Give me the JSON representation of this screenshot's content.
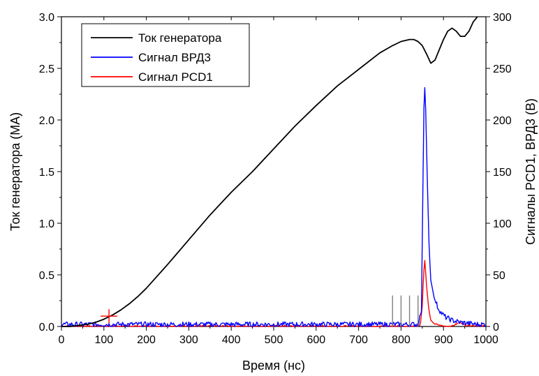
{
  "chart_data": {
    "type": "line",
    "xlabel": "Время (нс)",
    "ylabel_left": "Ток генератора (MA)",
    "ylabel_right": "Сигналы PCD1, ВРД3 (В)",
    "xlim": [
      0,
      1000
    ],
    "ylim_left": [
      0,
      3.0
    ],
    "ylim_right": [
      0,
      300
    ],
    "x_ticks": [
      "0",
      "100",
      "200",
      "300",
      "400",
      "500",
      "600",
      "700",
      "800",
      "900",
      "1000"
    ],
    "y_left_ticks": [
      "0.0",
      "0.5",
      "1.0",
      "1.5",
      "2.0",
      "2.5",
      "3.0"
    ],
    "y_right_ticks": [
      "0",
      "50",
      "100",
      "150",
      "200",
      "250",
      "300"
    ],
    "grid": false,
    "legend_position": "top-left",
    "series": [
      {
        "name": "Ток генератора",
        "axis": "left",
        "color": "#000000",
        "x": [
          0,
          20,
          40,
          60,
          80,
          100,
          120,
          140,
          160,
          180,
          200,
          250,
          300,
          350,
          400,
          450,
          500,
          550,
          600,
          650,
          700,
          750,
          780,
          800,
          820,
          830,
          840,
          850,
          860,
          870,
          880,
          890,
          900,
          910,
          920,
          930,
          940,
          950,
          960,
          970,
          980
        ],
        "y": [
          0,
          0.0,
          0.01,
          0.02,
          0.04,
          0.07,
          0.11,
          0.16,
          0.22,
          0.29,
          0.37,
          0.6,
          0.84,
          1.08,
          1.3,
          1.5,
          1.72,
          1.94,
          2.14,
          2.33,
          2.49,
          2.65,
          2.72,
          2.76,
          2.78,
          2.78,
          2.76,
          2.72,
          2.64,
          2.55,
          2.58,
          2.68,
          2.78,
          2.86,
          2.89,
          2.86,
          2.81,
          2.81,
          2.86,
          2.95,
          3.0
        ]
      },
      {
        "name": "Сигнал ВРД3",
        "axis": "right",
        "color": "#0000ff",
        "x": [
          0,
          100,
          200,
          300,
          400,
          500,
          600,
          700,
          800,
          840,
          848,
          852,
          855,
          858,
          862,
          866,
          870,
          878,
          886,
          895,
          905,
          920,
          940,
          960,
          980,
          1000
        ],
        "y": [
          1,
          1,
          1,
          1,
          1,
          1,
          1,
          1,
          1,
          1,
          15,
          150,
          242,
          210,
          140,
          80,
          45,
          28,
          18,
          12,
          8,
          5,
          3,
          2,
          1,
          1
        ]
      },
      {
        "name": "Сигнал PCD1",
        "axis": "right",
        "color": "#ff0000",
        "x": [
          0,
          200,
          400,
          600,
          800,
          845,
          850,
          853,
          856,
          860,
          865,
          870,
          880,
          900,
          920,
          930,
          940,
          950,
          1000
        ],
        "y": [
          0,
          0,
          0,
          0,
          0,
          0,
          20,
          50,
          64,
          40,
          18,
          6,
          2,
          0,
          0,
          2,
          4,
          1,
          0
        ]
      }
    ],
    "annotations": {
      "start_marker": {
        "x": 112,
        "y_left": 0.1,
        "color": "#ff0000"
      },
      "gray_ticks": {
        "x": [
          780,
          800,
          820,
          840
        ],
        "top_right_axis": 30,
        "color": "#808080"
      }
    }
  }
}
